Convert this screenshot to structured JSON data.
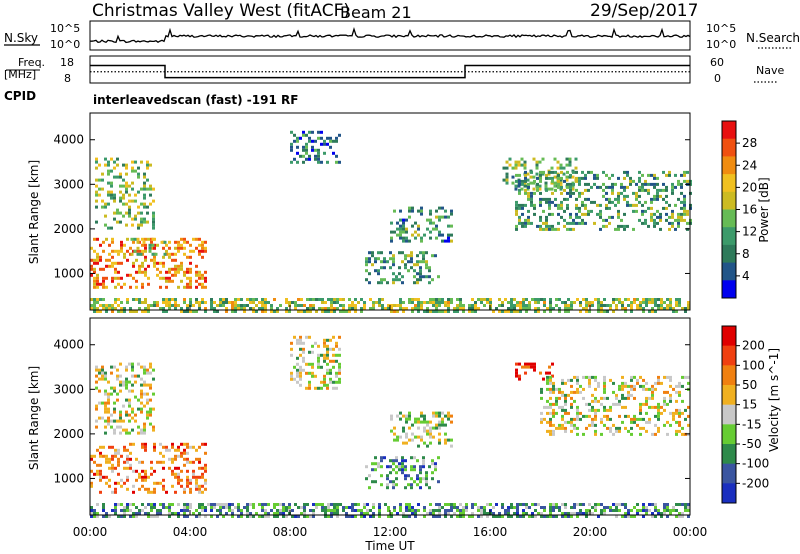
{
  "header": {
    "title": "Christmas Valley West (fitACF)",
    "beam": "Beam 21",
    "date": "29/Sep/2017"
  },
  "noise_panel": {
    "left_label": "N.Sky",
    "left_ticks": [
      "10^5",
      "10^0"
    ],
    "right_ticks": [
      "10^5",
      "10^0"
    ],
    "right_label": "N.Search",
    "n_sky_level": 1.5,
    "n_sky_level_after_03h": 2.4
  },
  "freq_panel": {
    "left_label_1": "Freq.",
    "left_label_2": "[MHz]",
    "left_ticks": [
      "18",
      "8"
    ],
    "right_ticks": [
      "60",
      "0"
    ],
    "right_label": "Nave",
    "freq_mhz": [
      {
        "start_h": 0,
        "end_h": 3,
        "value": 14.5
      },
      {
        "start_h": 3,
        "end_h": 15,
        "value": 10.0
      },
      {
        "start_h": 15,
        "end_h": 24,
        "value": 14.5
      }
    ],
    "nave": 25
  },
  "cpid": {
    "label": "CPID",
    "text": "interleavedscan (fast) -191 RF"
  },
  "chart_data": [
    {
      "type": "heatmap",
      "name": "power",
      "ylabel": "Slant Range [km]",
      "yticks": [
        1000,
        2000,
        3000,
        4000
      ],
      "ylim": [
        180,
        4600
      ],
      "xlim": [
        0,
        24
      ],
      "colorbar": {
        "label": "Power [dB]",
        "ticks": [
          "28",
          "24",
          "20",
          "16",
          "12",
          "8",
          "4"
        ],
        "range": [
          0,
          32
        ],
        "colors": [
          "#0000ee",
          "#225588",
          "#2e7a5a",
          "#3c9a6a",
          "#66bb55",
          "#ccbb22",
          "#f0c020",
          "#f08c10",
          "#f05010",
          "#e81010"
        ]
      },
      "echo_regions": [
        {
          "t0": 0.0,
          "t1": 4.6,
          "r0": 700,
          "r1": 1800,
          "level": 0.75
        },
        {
          "t0": 0.2,
          "t1": 2.5,
          "r0": 2000,
          "r1": 3600,
          "level": 0.45
        },
        {
          "t0": 1.5,
          "t1": 3.0,
          "r0": 1400,
          "r1": 1800,
          "level": 0.55
        },
        {
          "t0": 11.0,
          "t1": 14.0,
          "r0": 800,
          "r1": 1500,
          "level": 0.35
        },
        {
          "t0": 12.0,
          "t1": 14.5,
          "r0": 1700,
          "r1": 2500,
          "level": 0.3
        },
        {
          "t0": 16.5,
          "t1": 19.5,
          "r0": 2900,
          "r1": 3600,
          "level": 0.4
        },
        {
          "t0": 17.0,
          "t1": 24.0,
          "r0": 2000,
          "r1": 3300,
          "level": 0.35
        },
        {
          "t0": 8.0,
          "t1": 10.0,
          "r0": 3500,
          "r1": 4200,
          "level": 0.25
        },
        {
          "t0": 0.0,
          "t1": 24.0,
          "r0": 180,
          "r1": 450,
          "level": 0.5
        }
      ]
    },
    {
      "type": "heatmap",
      "name": "velocity",
      "ylabel": "Slant Range [km]",
      "yticks": [
        1000,
        2000,
        3000,
        4000
      ],
      "ylim": [
        180,
        4600
      ],
      "xlim": [
        0,
        24
      ],
      "xticks": [
        "00:00",
        "04:00",
        "08:00",
        "12:00",
        "16:00",
        "20:00",
        "00:00"
      ],
      "xlabel": "Time UT",
      "colorbar": {
        "label": "Velocity [m s^-1]",
        "ticks": [
          "200",
          "100",
          "50",
          "15",
          "-15",
          "-50",
          "-100",
          "-200"
        ],
        "colors": [
          "#1a2fbf",
          "#3a55a0",
          "#2e8a4a",
          "#66cc33",
          "#c8c8c8",
          "#f0b020",
          "#f08010",
          "#f04010",
          "#e00000"
        ]
      },
      "echo_regions": [
        {
          "t0": 0.0,
          "t1": 4.6,
          "r0": 700,
          "r1": 1800,
          "level": 0.7
        },
        {
          "t0": 0.2,
          "t1": 2.5,
          "r0": 2000,
          "r1": 3600,
          "level": 0.5
        },
        {
          "t0": 11.0,
          "t1": 14.0,
          "r0": 800,
          "r1": 1500,
          "level": 0.3
        },
        {
          "t0": 12.0,
          "t1": 14.5,
          "r0": 1700,
          "r1": 2500,
          "level": 0.45
        },
        {
          "t0": 17.0,
          "t1": 18.5,
          "r0": 3200,
          "r1": 3600,
          "level": 0.9
        },
        {
          "t0": 18.0,
          "t1": 24.0,
          "r0": 2000,
          "r1": 3300,
          "level": 0.5
        },
        {
          "t0": 8.0,
          "t1": 10.0,
          "r0": 3000,
          "r1": 4200,
          "level": 0.5
        },
        {
          "t0": 0.0,
          "t1": 24.0,
          "r0": 180,
          "r1": 450,
          "level": 0.3
        }
      ]
    }
  ]
}
